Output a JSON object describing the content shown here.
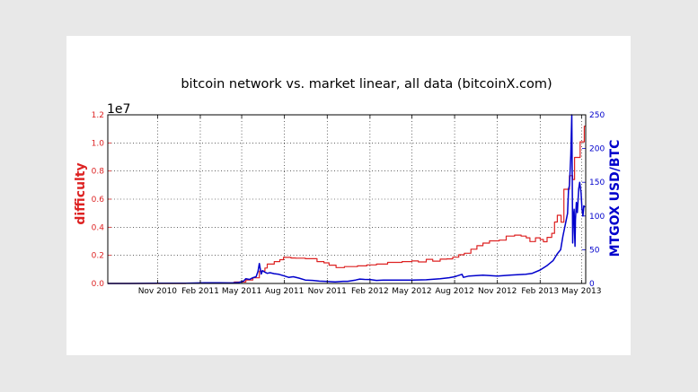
{
  "chart_data": {
    "type": "line",
    "title": "bitcoin network vs. market linear, all data (bitcoinX.com)",
    "ylabel": "difficulty",
    "y2label": "MTGOX USD/BTC",
    "y_offset_label": "1e7",
    "xlim": [
      "2010-07-17",
      "2013-05-10"
    ],
    "ylim": [
      0,
      12000000
    ],
    "y2lim": [
      0,
      250
    ],
    "grid": true,
    "x_ticks": [
      {
        "date": "2010-11-01",
        "label": "Nov 2010"
      },
      {
        "date": "2011-02-01",
        "label": "Feb 2011"
      },
      {
        "date": "2011-05-01",
        "label": "May 2011"
      },
      {
        "date": "2011-08-01",
        "label": "Aug 2011"
      },
      {
        "date": "2011-11-01",
        "label": "Nov 2011"
      },
      {
        "date": "2012-02-01",
        "label": "Feb 2012"
      },
      {
        "date": "2012-05-01",
        "label": "May 2012"
      },
      {
        "date": "2012-08-01",
        "label": "Aug 2012"
      },
      {
        "date": "2012-11-01",
        "label": "Nov 2012"
      },
      {
        "date": "2013-02-01",
        "label": "Feb 2013"
      },
      {
        "date": "2013-05-01",
        "label": "May 2013"
      }
    ],
    "y_ticks": [
      {
        "value": 0,
        "label": "0.0"
      },
      {
        "value": 2000000,
        "label": "0.2"
      },
      {
        "value": 4000000,
        "label": "0.4"
      },
      {
        "value": 6000000,
        "label": "0.6"
      },
      {
        "value": 8000000,
        "label": "0.8"
      },
      {
        "value": 10000000,
        "label": "1.0"
      },
      {
        "value": 12000000,
        "label": "1.2"
      }
    ],
    "y2_ticks": [
      {
        "value": 0,
        "label": "0"
      },
      {
        "value": 50,
        "label": "50"
      },
      {
        "value": 100,
        "label": "100"
      },
      {
        "value": 150,
        "label": "150"
      },
      {
        "value": 200,
        "label": "200"
      },
      {
        "value": 250,
        "label": "250"
      }
    ],
    "series": [
      {
        "axis": "left",
        "color": "#dd2222",
        "step": true,
        "points": [
          [
            "2010-07-17",
            0
          ],
          [
            "2011-01-01",
            10000
          ],
          [
            "2011-03-01",
            30000
          ],
          [
            "2011-04-15",
            100000
          ],
          [
            "2011-05-10",
            250000
          ],
          [
            "2011-05-25",
            400000
          ],
          [
            "2011-06-08",
            880000
          ],
          [
            "2011-06-20",
            1100000
          ],
          [
            "2011-06-25",
            1380000
          ],
          [
            "2011-07-10",
            1560000
          ],
          [
            "2011-07-22",
            1690000
          ],
          [
            "2011-07-30",
            1860000
          ],
          [
            "2011-08-15",
            1810000
          ],
          [
            "2011-08-25",
            1800000
          ],
          [
            "2011-09-15",
            1760000
          ],
          [
            "2011-10-10",
            1560000
          ],
          [
            "2011-10-25",
            1470000
          ],
          [
            "2011-11-05",
            1300000
          ],
          [
            "2011-11-20",
            1130000
          ],
          [
            "2011-12-08",
            1200000
          ],
          [
            "2012-01-05",
            1250000
          ],
          [
            "2012-01-25",
            1320000
          ],
          [
            "2012-02-15",
            1380000
          ],
          [
            "2012-03-10",
            1500000
          ],
          [
            "2012-04-10",
            1560000
          ],
          [
            "2012-05-01",
            1600000
          ],
          [
            "2012-05-15",
            1530000
          ],
          [
            "2012-06-01",
            1720000
          ],
          [
            "2012-06-15",
            1590000
          ],
          [
            "2012-07-01",
            1730000
          ],
          [
            "2012-07-15",
            1750000
          ],
          [
            "2012-07-28",
            1870000
          ],
          [
            "2012-08-10",
            2040000
          ],
          [
            "2012-08-22",
            2150000
          ],
          [
            "2012-09-05",
            2440000
          ],
          [
            "2012-09-18",
            2690000
          ],
          [
            "2012-10-01",
            2870000
          ],
          [
            "2012-10-15",
            3030000
          ],
          [
            "2012-11-05",
            3080000
          ],
          [
            "2012-11-20",
            3370000
          ],
          [
            "2012-12-08",
            3440000
          ],
          [
            "2012-12-22",
            3370000
          ],
          [
            "2013-01-02",
            3250000
          ],
          [
            "2013-01-10",
            2980000
          ],
          [
            "2013-01-22",
            3250000
          ],
          [
            "2013-02-01",
            3130000
          ],
          [
            "2013-02-08",
            2970000
          ],
          [
            "2013-02-16",
            3280000
          ],
          [
            "2013-02-26",
            3570000
          ],
          [
            "2013-03-04",
            4370000
          ],
          [
            "2013-03-10",
            4850000
          ],
          [
            "2013-03-18",
            4360000
          ],
          [
            "2013-03-24",
            6700000
          ],
          [
            "2013-04-05",
            7670000
          ],
          [
            "2013-04-12",
            7400000
          ],
          [
            "2013-04-16",
            8970000
          ],
          [
            "2013-04-28",
            10080000
          ],
          [
            "2013-05-07",
            11190000
          ],
          [
            "2013-05-10",
            11190000
          ]
        ]
      },
      {
        "axis": "right",
        "color": "#0000cc",
        "step": false,
        "points": [
          [
            "2010-07-17",
            0.05
          ],
          [
            "2010-09-01",
            0.06
          ],
          [
            "2010-11-01",
            0.25
          ],
          [
            "2011-01-01",
            0.3
          ],
          [
            "2011-02-10",
            1
          ],
          [
            "2011-03-15",
            0.9
          ],
          [
            "2011-04-10",
            0.8
          ],
          [
            "2011-04-25",
            1.5
          ],
          [
            "2011-05-05",
            3.5
          ],
          [
            "2011-05-10",
            7
          ],
          [
            "2011-05-18",
            6
          ],
          [
            "2011-05-25",
            8.5
          ],
          [
            "2011-06-01",
            10
          ],
          [
            "2011-06-05",
            18
          ],
          [
            "2011-06-08",
            29.6
          ],
          [
            "2011-06-10",
            22
          ],
          [
            "2011-06-12",
            14
          ],
          [
            "2011-06-15",
            19
          ],
          [
            "2011-06-19",
            17
          ],
          [
            "2011-06-25",
            15
          ],
          [
            "2011-07-01",
            16
          ],
          [
            "2011-07-10",
            14.5
          ],
          [
            "2011-07-20",
            13.5
          ],
          [
            "2011-08-01",
            11
          ],
          [
            "2011-08-10",
            9
          ],
          [
            "2011-08-20",
            10
          ],
          [
            "2011-09-01",
            8
          ],
          [
            "2011-09-15",
            5
          ],
          [
            "2011-10-01",
            4.5
          ],
          [
            "2011-10-15",
            3.5
          ],
          [
            "2011-11-01",
            3
          ],
          [
            "2011-11-18",
            2.2
          ],
          [
            "2011-12-01",
            3
          ],
          [
            "2011-12-15",
            3.2
          ],
          [
            "2012-01-01",
            5
          ],
          [
            "2012-01-10",
            6.5
          ],
          [
            "2012-01-20",
            6
          ],
          [
            "2012-02-01",
            5.8
          ],
          [
            "2012-02-15",
            4.5
          ],
          [
            "2012-03-01",
            4.9
          ],
          [
            "2012-04-01",
            4.9
          ],
          [
            "2012-05-01",
            5.1
          ],
          [
            "2012-06-01",
            5.5
          ],
          [
            "2012-07-01",
            7
          ],
          [
            "2012-07-20",
            8.5
          ],
          [
            "2012-08-01",
            10
          ],
          [
            "2012-08-17",
            13.5
          ],
          [
            "2012-08-20",
            9
          ],
          [
            "2012-09-01",
            11
          ],
          [
            "2012-10-01",
            12.3
          ],
          [
            "2012-11-01",
            11
          ],
          [
            "2012-12-01",
            12.5
          ],
          [
            "2013-01-01",
            13.5
          ],
          [
            "2013-01-15",
            15
          ],
          [
            "2013-02-01",
            20
          ],
          [
            "2013-02-15",
            26
          ],
          [
            "2013-03-01",
            34
          ],
          [
            "2013-03-10",
            44
          ],
          [
            "2013-03-17",
            50
          ],
          [
            "2013-03-22",
            70
          ],
          [
            "2013-03-28",
            90
          ],
          [
            "2013-04-01",
            104
          ],
          [
            "2013-04-03",
            140
          ],
          [
            "2013-04-05",
            145
          ],
          [
            "2013-04-08",
            190
          ],
          [
            "2013-04-10",
            250
          ],
          [
            "2013-04-11",
            160
          ],
          [
            "2013-04-12",
            60
          ],
          [
            "2013-04-13",
            95
          ],
          [
            "2013-04-15",
            110
          ],
          [
            "2013-04-16",
            75
          ],
          [
            "2013-04-17",
            55
          ],
          [
            "2013-04-18",
            95
          ],
          [
            "2013-04-20",
            120
          ],
          [
            "2013-04-22",
            105
          ],
          [
            "2013-04-25",
            140
          ],
          [
            "2013-04-27",
            150
          ],
          [
            "2013-04-30",
            135
          ],
          [
            "2013-05-02",
            110
          ],
          [
            "2013-05-04",
            100
          ],
          [
            "2013-05-06",
            115
          ],
          [
            "2013-05-08",
            113
          ]
        ]
      }
    ]
  }
}
